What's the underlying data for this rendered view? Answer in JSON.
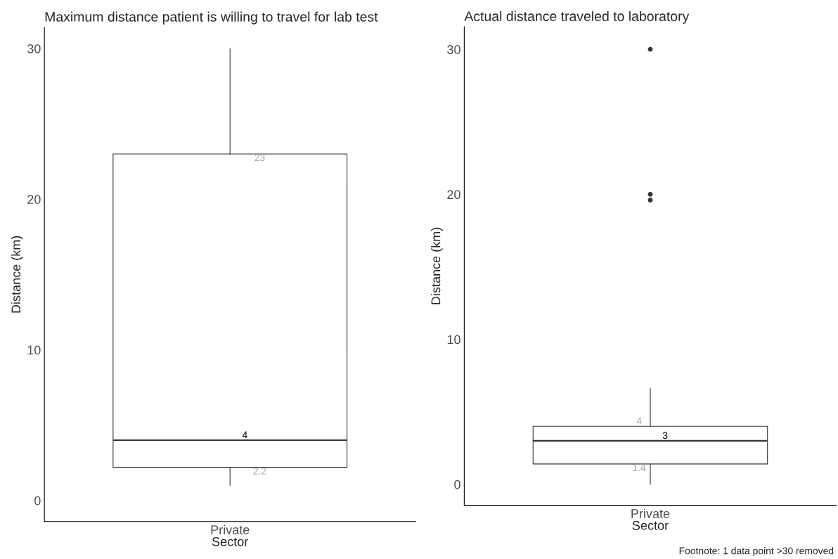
{
  "chart_data": [
    {
      "type": "box",
      "title": "Maximum distance patient is willing to travel for lab test",
      "xlabel": "Sector",
      "ylabel": "Distance (km)",
      "categories": [
        "Private"
      ],
      "boxes": [
        {
          "low": 1,
          "q1": 2.2,
          "median": 4,
          "q3": 23,
          "high": 30
        }
      ],
      "ylim": [
        -1.4,
        31.4
      ],
      "yticks": [
        0,
        10,
        20,
        30
      ],
      "grid": false,
      "annotations": [
        {
          "text": "23",
          "x": "Private",
          "y": 23
        },
        {
          "text": "4",
          "x": "Private",
          "y": 4
        },
        {
          "text": "2.2",
          "x": "Private",
          "y": 2.2
        }
      ]
    },
    {
      "type": "box",
      "title": "Actual distance traveled to laboratory",
      "xlabel": "Sector",
      "ylabel": "Distance (km)",
      "categories": [
        "Private"
      ],
      "boxes": [
        {
          "low": 0,
          "q1": 1.4,
          "median": 3,
          "q3": 4,
          "high": 6.6,
          "outliers": [
            30,
            20,
            19.6
          ]
        }
      ],
      "ylim": [
        -1.45,
        31.55
      ],
      "yticks": [
        0,
        10,
        20,
        30
      ],
      "grid": false,
      "annotations": [
        {
          "text": "4",
          "x": "Private",
          "y": 4
        },
        {
          "text": "3",
          "x": "Private",
          "y": 3
        },
        {
          "text": "1.4",
          "x": "Private",
          "y": 1.4
        },
        "Footnote: 1 data point >30 removed"
      ]
    }
  ]
}
